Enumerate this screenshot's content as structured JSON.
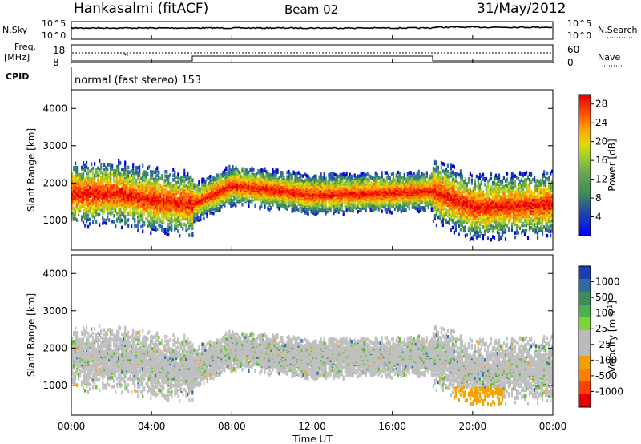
{
  "header": {
    "station": "Hankasalmi (fitACF)",
    "beam": "Beam 02",
    "date": "31/May/2012"
  },
  "noise_panel": {
    "left_label": "N.Sky",
    "right_label": "N.Search",
    "left_ticks": [
      "10^5",
      "10^0"
    ],
    "right_ticks": [
      "10^5",
      "10^0"
    ]
  },
  "freq_panel": {
    "left_label_1": "Freq.",
    "left_label_2": "[MHz]",
    "left_ticks": [
      "18",
      "8"
    ],
    "right_label": "Nave",
    "right_ticks": [
      "60",
      "0"
    ]
  },
  "cpid_panel": {
    "label": "CPID",
    "mode_text": "normal (fast stereo) 153"
  },
  "power_panel": {
    "ylabel": "Slant Range [km]",
    "yticks": [
      "4000",
      "3000",
      "2000",
      "1000"
    ],
    "colorbar_label": "Power [dB]",
    "colorbar_ticks": [
      "28",
      "24",
      "20",
      "16",
      "12",
      "8",
      "4"
    ],
    "colorbar_colors": [
      "#0000dd",
      "#1e3fb0",
      "#2f6fa0",
      "#3d8c5a",
      "#6aa84f",
      "#9acd32",
      "#e6d800",
      "#ffa500",
      "#ff6a00",
      "#ff3a00",
      "#e60000"
    ]
  },
  "velocity_panel": {
    "ylabel": "Slant Range [km]",
    "yticks": [
      "4000",
      "3000",
      "2000",
      "1000"
    ],
    "colorbar_label": "Velocity [m s^-1]",
    "colorbar_ticks": [
      "1000",
      "500",
      "100",
      "25",
      "-25",
      "-100",
      "-500",
      "-1000"
    ],
    "colorbar_colors": [
      "#1a3fb0",
      "#2f6aa0",
      "#3d8c5a",
      "#4caf50",
      "#7ad43a",
      "#bbbbbb",
      "#bbbbbb",
      "#f0a000",
      "#ff8000",
      "#ff4000",
      "#e60000"
    ]
  },
  "xaxis": {
    "label": "Time UT",
    "ticks": [
      "00:00",
      "04:00",
      "08:00",
      "12:00",
      "16:00",
      "20:00",
      "00:00"
    ]
  },
  "chart_data": {
    "type": "heatmap",
    "title": "Hankasalmi (fitACF) Beam 02 31/May/2012",
    "xlabel": "Time UT",
    "ylabel": "Slant Range [km]",
    "xlim": [
      0,
      24
    ],
    "ylim": [
      200,
      4500
    ],
    "panels": [
      "Power [dB]",
      "Velocity [m s^-1]"
    ],
    "power_range_db": [
      0,
      30
    ],
    "velocity_range": [
      -1000,
      1000
    ],
    "mode_changes_hours": [
      6,
      18
    ],
    "echo_band_centers_km": [
      {
        "x": 0,
        "y": 1750
      },
      {
        "x": 2,
        "y": 1800
      },
      {
        "x": 4,
        "y": 1600
      },
      {
        "x": 6,
        "y": 1500
      },
      {
        "x": 8,
        "y": 2000
      },
      {
        "x": 12,
        "y": 1750
      },
      {
        "x": 16,
        "y": 1800
      },
      {
        "x": 18,
        "y": 1850
      },
      {
        "x": 20,
        "y": 1400
      },
      {
        "x": 24,
        "y": 1500
      }
    ]
  }
}
